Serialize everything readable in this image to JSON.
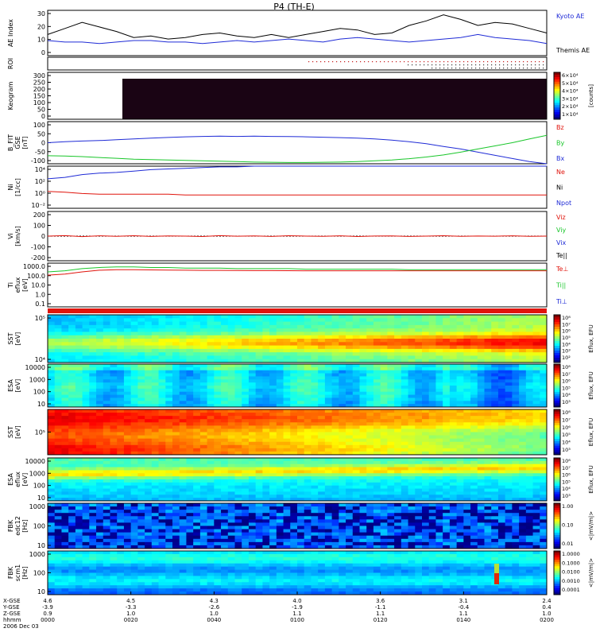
{
  "title": "P4 (TH-E)",
  "colors": {
    "blue": "#1f2bd6",
    "green": "#19c62a",
    "red": "#e0140c",
    "black": "#000000",
    "purple": "#6a1a8a"
  },
  "panels": [
    {
      "key": "ae",
      "ylabel": [
        "AE Index"
      ],
      "ticks": [
        "30",
        "20",
        "10",
        "0"
      ],
      "right": [
        {
          "text": "Kyoto AE",
          "color": "blue"
        },
        {
          "text": "Themis AE",
          "color": "black"
        }
      ]
    },
    {
      "key": "roi",
      "ylabel": [
        "ROI"
      ],
      "ticks": [],
      "right": []
    },
    {
      "key": "keo",
      "ylabel": [
        "Keogram"
      ],
      "ticks": [
        "300",
        "250",
        "200",
        "150",
        "100",
        "50",
        "0"
      ],
      "right": [],
      "colorbar": {
        "labels": [
          "6×10⁴",
          "5×10⁴",
          "4×10⁴",
          "3×10⁴",
          "2×10⁴",
          "1×10⁴"
        ],
        "title": "[counts]"
      }
    },
    {
      "key": "bfit",
      "ylabel": [
        "B_FIT",
        "GSE",
        "[nT]"
      ],
      "ticks": [
        "100",
        "50",
        "0",
        "-50",
        "-100"
      ],
      "right": [
        {
          "text": "Bz",
          "color": "red"
        },
        {
          "text": "By",
          "color": "green"
        },
        {
          "text": "Bx",
          "color": "blue"
        }
      ]
    },
    {
      "key": "ni",
      "ylabel": [
        "Ni",
        "[1/cc]"
      ],
      "ticks": [
        "10⁴",
        "10²",
        "10⁰",
        "10⁻²"
      ],
      "right": [
        {
          "text": "Ne",
          "color": "red"
        },
        {
          "text": "Ni",
          "color": "black"
        },
        {
          "text": "Npot",
          "color": "blue"
        }
      ]
    },
    {
      "key": "vi",
      "ylabel": [
        "Vi",
        "[km/s]"
      ],
      "ticks": [
        "200",
        "100",
        "0",
        "-100",
        "-200"
      ],
      "right": [
        {
          "text": "Viz",
          "color": "red"
        },
        {
          "text": "Viy",
          "color": "green"
        },
        {
          "text": "Vix",
          "color": "blue"
        },
        {
          "text": "Te||",
          "color": "black"
        }
      ]
    },
    {
      "key": "ti",
      "ylabel": [
        "Ti",
        "eflux",
        "[eV]"
      ],
      "ticks": [
        "1000.0",
        "100.0",
        "10.0",
        "1.0",
        "0.1"
      ],
      "right": [
        {
          "text": "Te⊥",
          "color": "red"
        },
        {
          "text": "Ti||",
          "color": "green"
        },
        {
          "text": "Ti⊥",
          "color": "blue"
        }
      ]
    },
    {
      "key": "sst1",
      "ylabel": [
        "SST",
        "[eV]"
      ],
      "ticks": [
        "10⁵",
        "10⁴"
      ],
      "right": [],
      "colorbar": {
        "labels": [
          "10⁸",
          "10⁷",
          "10⁶",
          "10⁵",
          "10⁴",
          "10³",
          "10²"
        ],
        "title": "Eflux, EFU"
      }
    },
    {
      "key": "esa1",
      "ylabel": [
        "ESA",
        "[eV]"
      ],
      "ticks": [
        "10000",
        "1000",
        "100",
        "10"
      ],
      "right": [],
      "colorbar": {
        "labels": [
          "10⁸",
          "10⁷",
          "10⁶",
          "10⁵",
          "10⁴",
          "10³"
        ],
        "title": "Eflux, EFU"
      }
    },
    {
      "key": "sst2",
      "ylabel": [
        "SST",
        "[eV]"
      ],
      "ticks": [
        "10⁵"
      ],
      "right": [],
      "colorbar": {
        "labels": [
          "10⁸",
          "10⁷",
          "10⁶",
          "10⁵",
          "10⁴",
          "10³"
        ],
        "title": "Eflux, EFU"
      }
    },
    {
      "key": "esa2",
      "ylabel": [
        "ESA",
        "eflux",
        "[eV]"
      ],
      "ticks": [
        "10000",
        "1000",
        "100",
        "10"
      ],
      "right": [],
      "colorbar": {
        "labels": [
          "10⁸",
          "10⁷",
          "10⁶",
          "10⁵",
          "10⁴",
          "10³"
        ],
        "title": "Eflux, EFU"
      }
    },
    {
      "key": "fbk1",
      "ylabel": [
        "FBK",
        "edc12",
        "[Hz]"
      ],
      "ticks": [
        "1000",
        "100",
        "10"
      ],
      "right": [],
      "colorbar": {
        "labels": [
          "1.00",
          "0.10",
          "0.01"
        ],
        "title": "<|mV/m|>"
      }
    },
    {
      "key": "fbk2",
      "ylabel": [
        "FBK",
        "scm1",
        "[Hz]"
      ],
      "ticks": [
        "1000",
        "100",
        "10"
      ],
      "right": [],
      "colorbar": {
        "labels": [
          "1.0000",
          "0.1000",
          "0.0100",
          "0.0010",
          "0.0001"
        ],
        "title": "<|mV/m|>"
      }
    }
  ],
  "footer": {
    "labels": [
      "X-GSE",
      "Y-GSE",
      "Z-GSE",
      "hhmm",
      "2006 Dec 03"
    ],
    "columns": [
      [
        "4.6",
        "-3.9",
        "0.9",
        "0000"
      ],
      [
        "4.5",
        "-3.3",
        "1.0",
        "0020"
      ],
      [
        "4.3",
        "-2.6",
        "1.0",
        "0040"
      ],
      [
        "4.0",
        "-1.9",
        "1.1",
        "0100"
      ],
      [
        "3.6",
        "-1.1",
        "1.1",
        "0120"
      ],
      [
        "3.1",
        "-0.4",
        "1.1",
        "0140"
      ],
      [
        "2.4",
        "0.4",
        "1.0",
        "0200"
      ]
    ]
  },
  "chart_data": {
    "type": "line",
    "x_range": [
      "0000",
      "0200"
    ],
    "x_ticks": [
      "0000",
      "0020",
      "0040",
      "0100",
      "0120",
      "0140",
      "0200"
    ],
    "series": [
      {
        "name": "Kyoto AE",
        "panel": "ae",
        "color": "blue",
        "ylim": [
          0,
          30
        ],
        "values": [
          10,
          9,
          9,
          8,
          9,
          10,
          10,
          9,
          9,
          8,
          9,
          10,
          9,
          10,
          11,
          10,
          9,
          11,
          12,
          11,
          10,
          9,
          10,
          11,
          12,
          14,
          12,
          11,
          10,
          8
        ]
      },
      {
        "name": "Themis AE",
        "panel": "ae",
        "color": "black",
        "ylim": [
          0,
          30
        ],
        "values": [
          14,
          18,
          22,
          19,
          16,
          12,
          13,
          11,
          12,
          14,
          15,
          13,
          12,
          14,
          12,
          14,
          16,
          18,
          17,
          14,
          15,
          20,
          23,
          27,
          24,
          20,
          22,
          21,
          18,
          15
        ]
      },
      {
        "name": "Bx",
        "panel": "bfit",
        "color": "blue",
        "ylim": [
          -100,
          100
        ],
        "values": [
          0,
          5,
          8,
          10,
          14,
          18,
          22,
          25,
          28,
          30,
          31,
          30,
          31,
          30,
          29,
          28,
          26,
          24,
          22,
          18,
          12,
          5,
          -5,
          -18,
          -30,
          -45,
          -60,
          -75,
          -90,
          -100
        ]
      },
      {
        "name": "By",
        "panel": "bfit",
        "color": "green",
        "ylim": [
          -100,
          100
        ],
        "values": [
          -62,
          -63,
          -66,
          -70,
          -74,
          -78,
          -80,
          -82,
          -84,
          -86,
          -88,
          -90,
          -92,
          -93,
          -94,
          -94,
          -93,
          -92,
          -90,
          -86,
          -82,
          -76,
          -68,
          -58,
          -45,
          -30,
          -15,
          0,
          18,
          35
        ]
      },
      {
        "name": "Ni",
        "panel": "ni",
        "color": "blue",
        "ylim": [
          -2,
          4
        ],
        "log10": true,
        "values": [
          2.2,
          2.4,
          2.8,
          3.0,
          3.1,
          3.3,
          3.5,
          3.6,
          3.7,
          3.8,
          3.9,
          3.9,
          4.0,
          4.0,
          4.0,
          4.0,
          4.0,
          4.0,
          4.0,
          4.0,
          4.0,
          4.0,
          4.0,
          4.0,
          4.0,
          4.0,
          4.0,
          4.0,
          4.0,
          4.0
        ]
      },
      {
        "name": "Ne",
        "panel": "ni",
        "color": "red",
        "ylim": [
          -2,
          4
        ],
        "log10": true,
        "values": [
          0.4,
          0.3,
          0.1,
          0.0,
          0.0,
          0.0,
          0.0,
          0.0,
          -0.1,
          -0.1,
          -0.1,
          -0.1,
          -0.1,
          -0.1,
          -0.1,
          -0.1,
          -0.1,
          -0.1,
          -0.1,
          -0.1,
          -0.1,
          -0.1,
          -0.1,
          -0.1,
          -0.1,
          -0.1,
          -0.1,
          -0.1,
          -0.1,
          -0.1
        ]
      },
      {
        "name": "Viz",
        "panel": "vi",
        "color": "red",
        "ylim": [
          -250,
          250
        ],
        "values": [
          0,
          5,
          -5,
          3,
          -2,
          4,
          -3,
          2,
          0,
          -4,
          5,
          -1,
          2,
          -3,
          4,
          0,
          -2,
          3,
          -4,
          1,
          2,
          -3,
          0,
          4,
          -2,
          1,
          -1,
          3,
          -2,
          0
        ]
      },
      {
        "name": "Ti||",
        "panel": "ti",
        "color": "green",
        "ylim": [
          -1,
          3
        ],
        "log10": true,
        "values": [
          2.2,
          2.3,
          2.5,
          2.6,
          2.65,
          2.65,
          2.6,
          2.6,
          2.55,
          2.55,
          2.55,
          2.5,
          2.5,
          2.5,
          2.5,
          2.45,
          2.45,
          2.45,
          2.45,
          2.45,
          2.45,
          2.4,
          2.4,
          2.4,
          2.4,
          2.4,
          2.4,
          2.4,
          2.4,
          2.4
        ]
      },
      {
        "name": "Te⊥",
        "panel": "ti",
        "color": "red",
        "ylim": [
          -1,
          3
        ],
        "log10": true,
        "values": [
          1.9,
          2.0,
          2.2,
          2.35,
          2.4,
          2.4,
          2.38,
          2.36,
          2.35,
          2.34,
          2.34,
          2.33,
          2.32,
          2.32,
          2.31,
          2.3,
          2.3,
          2.3,
          2.3,
          2.3,
          2.3,
          2.3,
          2.3,
          2.3,
          2.3,
          2.3,
          2.3,
          2.3,
          2.3,
          2.3
        ]
      }
    ]
  }
}
